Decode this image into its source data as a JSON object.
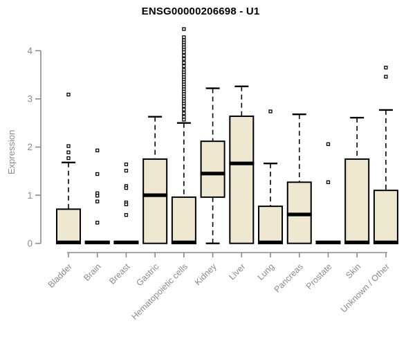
{
  "chart_data": {
    "type": "boxplot",
    "title": "ENSG00000206698 - U1",
    "ylabel": "Expression",
    "ylim": [
      0,
      4.5
    ],
    "yticks": [
      0,
      1,
      2,
      3,
      4
    ],
    "grid": false,
    "legend": "none",
    "categories": [
      "Bladder",
      "Brain",
      "Breast",
      "Gastric",
      "Hematopoietic cells",
      "Kidney",
      "Liver",
      "Lung",
      "Pancreas",
      "Prostate",
      "Skin",
      "Unknown / Other"
    ],
    "series": [
      {
        "name": "Bladder",
        "low": 0,
        "q1": 0,
        "median": 0.02,
        "q3": 0.71,
        "high": 1.68,
        "outliers": [
          3.09,
          2.02,
          1.89,
          1.77
        ]
      },
      {
        "name": "Brain",
        "low": 0,
        "q1": 0,
        "median": 0.02,
        "q3": 0.04,
        "high": 0.04,
        "outliers": [
          1.93,
          1.44,
          1.04,
          0.99,
          0.87,
          0.43
        ]
      },
      {
        "name": "Breast",
        "low": 0,
        "q1": 0,
        "median": 0.02,
        "q3": 0.04,
        "high": 0.04,
        "outliers": [
          1.64,
          1.51,
          1.19,
          1.15,
          0.85,
          0.81,
          0.59
        ]
      },
      {
        "name": "Gastric",
        "low": 0,
        "q1": 0,
        "median": 1.0,
        "q3": 1.75,
        "high": 2.63,
        "outliers": []
      },
      {
        "name": "Hematopoietic cells",
        "low": 0,
        "q1": 0,
        "median": 0.02,
        "q3": 0.96,
        "high": 2.5,
        "outliers": [
          4.45,
          4.28,
          4.22,
          4.17,
          4.12,
          4.07,
          4.02,
          3.97,
          3.9,
          3.83,
          3.75,
          3.68,
          3.6,
          3.55,
          3.5,
          3.45,
          3.4,
          3.35,
          3.3,
          3.25,
          3.2,
          3.15,
          3.1,
          3.05,
          3.0,
          2.95,
          2.9,
          2.85,
          2.78,
          2.7,
          2.63,
          2.57
        ]
      },
      {
        "name": "Kidney",
        "low": 0,
        "q1": 0.96,
        "median": 1.45,
        "q3": 2.12,
        "high": 3.22,
        "outliers": []
      },
      {
        "name": "Liver",
        "low": 0,
        "q1": 0,
        "median": 1.66,
        "q3": 2.64,
        "high": 3.26,
        "outliers": []
      },
      {
        "name": "Lung",
        "low": 0,
        "q1": 0,
        "median": 0.02,
        "q3": 0.77,
        "high": 1.66,
        "outliers": [
          2.74
        ]
      },
      {
        "name": "Pancreas",
        "low": 0,
        "q1": 0,
        "median": 0.6,
        "q3": 1.27,
        "high": 2.68,
        "outliers": []
      },
      {
        "name": "Prostate",
        "low": 0,
        "q1": 0,
        "median": 0.02,
        "q3": 0.04,
        "high": 0.04,
        "outliers": [
          2.06,
          1.27
        ]
      },
      {
        "name": "Skin",
        "low": 0,
        "q1": 0,
        "median": 0.02,
        "q3": 1.75,
        "high": 2.61,
        "outliers": []
      },
      {
        "name": "Unknown / Other",
        "low": 0,
        "q1": 0,
        "median": 0.02,
        "q3": 1.1,
        "high": 2.77,
        "outliers": [
          3.65,
          3.46
        ]
      }
    ],
    "colors": {
      "box_fill": "#EDE8CF",
      "box_stroke": "#000000",
      "median": "#000000",
      "axis": "#8a8a8a",
      "tick_label": "#8a8a8a",
      "title": "#000000",
      "background": "#ffffff"
    }
  }
}
